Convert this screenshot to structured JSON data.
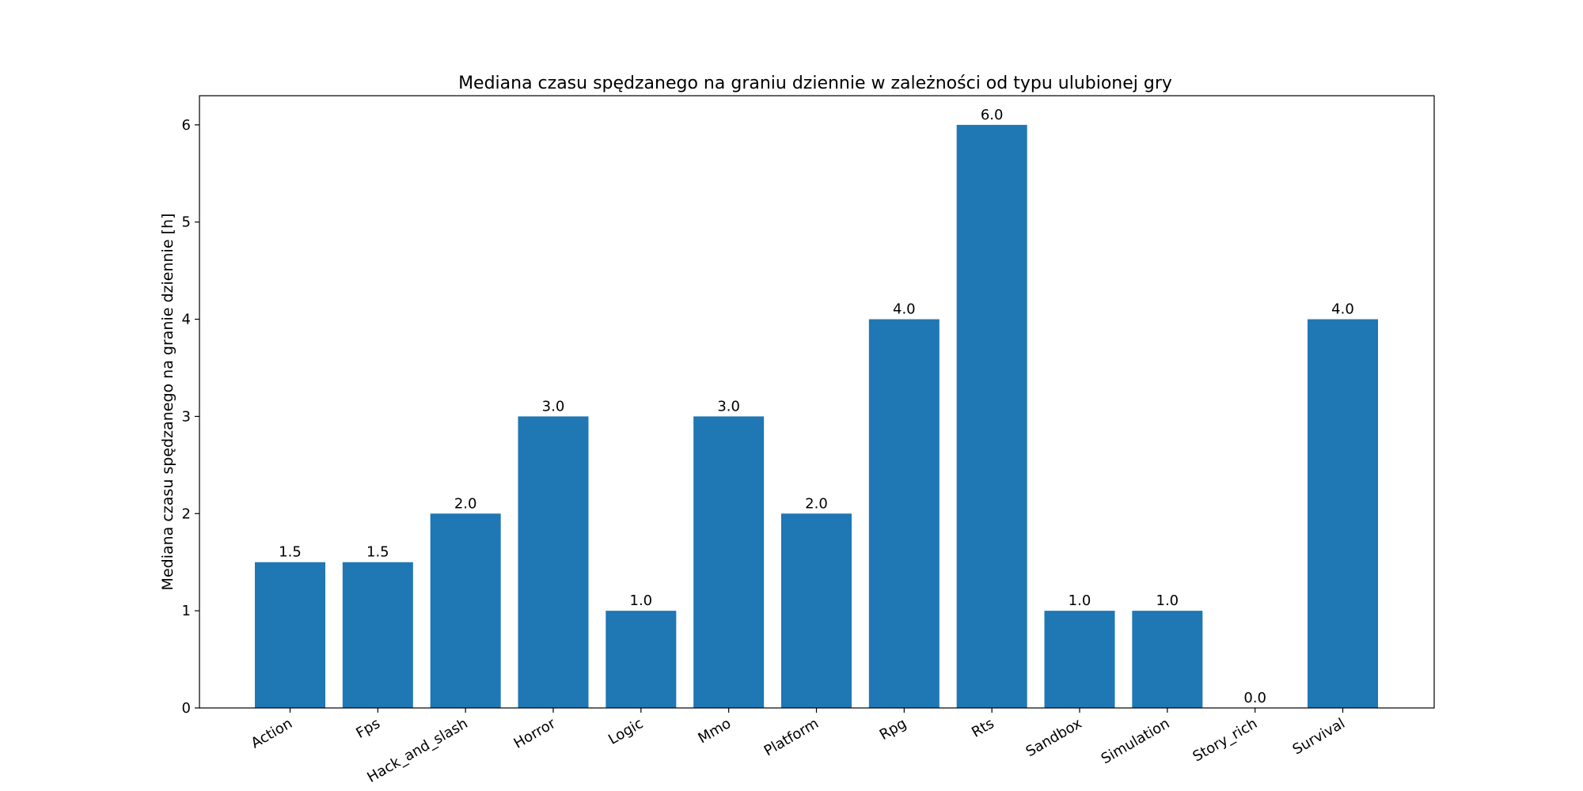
{
  "chart_data": {
    "type": "bar",
    "title": "Mediana czasu spędzanego na graniu dziennie w zależności od typu ulubionej gry",
    "xlabel": "",
    "ylabel": "Mediana czasu spędzanego na granie dziennie [h]",
    "categories": [
      "Action",
      "Fps",
      "Hack_and_slash",
      "Horror",
      "Logic",
      "Mmo",
      "Platform",
      "Rpg",
      "Rts",
      "Sandbox",
      "Simulation",
      "Story_rich",
      "Survival"
    ],
    "values": [
      1.5,
      1.5,
      2.0,
      3.0,
      1.0,
      3.0,
      2.0,
      4.0,
      6.0,
      1.0,
      1.0,
      0.0,
      4.0
    ],
    "value_labels": [
      "1.5",
      "1.5",
      "2.0",
      "3.0",
      "1.0",
      "3.0",
      "2.0",
      "4.0",
      "6.0",
      "1.0",
      "1.0",
      "0.0",
      "4.0"
    ],
    "yticks": [
      0,
      1,
      2,
      3,
      4,
      5,
      6
    ],
    "ytick_labels": [
      "0",
      "1",
      "2",
      "3",
      "4",
      "5",
      "6"
    ],
    "ylim": [
      0,
      6.3
    ],
    "grid": false,
    "bar_color": "#1f77b4",
    "xtick_rotation": "rotated 30 degrees"
  }
}
